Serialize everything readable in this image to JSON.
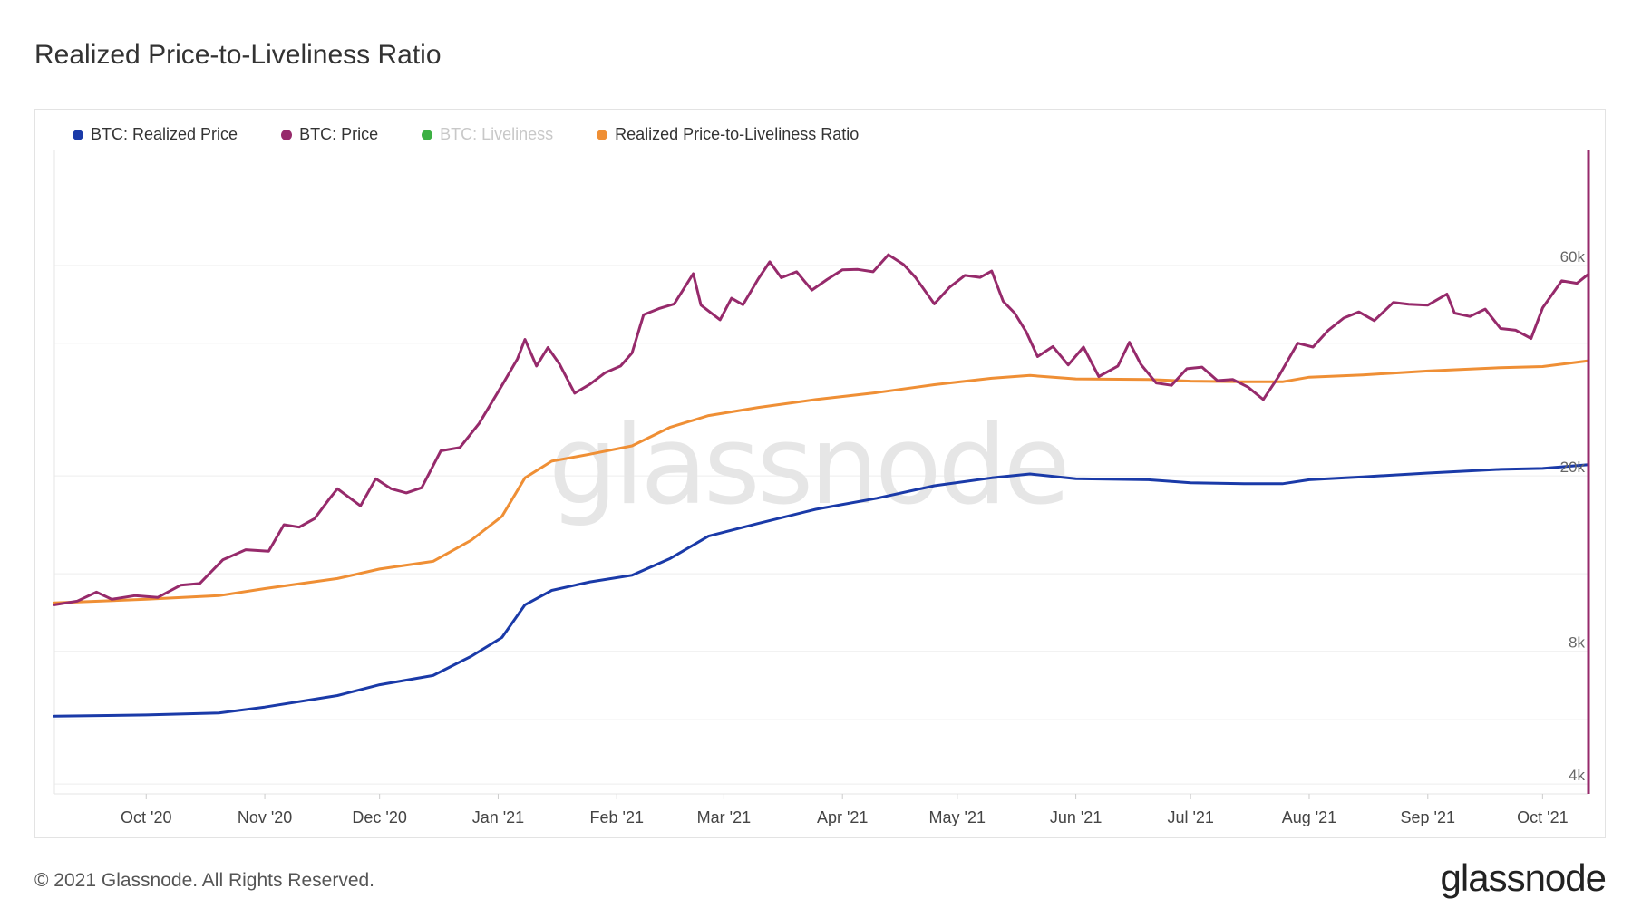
{
  "header": {
    "title": "Realized Price-to-Liveliness Ratio"
  },
  "footer": {
    "copyright": "© 2021 Glassnode. All Rights Reserved.",
    "logo_text": "glassnode"
  },
  "watermark": "glassnode",
  "colors": {
    "realized_price": "#1a3aa8",
    "price": "#962a6b",
    "liveliness": "#3cb043",
    "ratio": "#ef8f35",
    "grid": "#eeeeee"
  },
  "chart_data": {
    "type": "line",
    "title": "Realized Price-to-Liveliness Ratio",
    "xlabel": "",
    "ylabel": "",
    "yscale": "log",
    "ylim": [
      3800,
      110000
    ],
    "x_ticks": [
      "Oct '20",
      "Nov '20",
      "Dec '20",
      "Jan '21",
      "Feb '21",
      "Mar '21",
      "Apr '21",
      "May '21",
      "Jun '21",
      "Jul '21",
      "Aug '21",
      "Sep '21",
      "Oct '21"
    ],
    "x_tick_dates": [
      "2020-10-01",
      "2020-11-01",
      "2020-12-01",
      "2021-01-01",
      "2021-02-01",
      "2021-03-01",
      "2021-04-01",
      "2021-05-01",
      "2021-06-01",
      "2021-07-01",
      "2021-08-01",
      "2021-09-01",
      "2021-10-01"
    ],
    "x_range": [
      "2020-09-07",
      "2021-10-13"
    ],
    "y_ticks": [
      {
        "label": "60k",
        "value": 60000
      },
      {
        "label": "20k",
        "value": 20000
      },
      {
        "label": "8k",
        "value": 8000
      },
      {
        "label": "4k",
        "value": 4000
      }
    ],
    "grid": true,
    "legend_position": "top-left",
    "legend": [
      {
        "name": "BTC: Realized Price",
        "color": "#1a3aa8",
        "visible": true
      },
      {
        "name": "BTC: Price",
        "color": "#962a6b",
        "visible": true
      },
      {
        "name": "BTC: Liveliness",
        "color": "#3cb043",
        "visible": false
      },
      {
        "name": "Realized Price-to-Liveliness Ratio",
        "color": "#ef8f35",
        "visible": true
      }
    ],
    "series": [
      {
        "name": "BTC: Price",
        "color": "#962a6b",
        "points": [
          [
            "2020-09-07",
            10200
          ],
          [
            "2020-09-13",
            10400
          ],
          [
            "2020-09-18",
            10900
          ],
          [
            "2020-09-22",
            10500
          ],
          [
            "2020-09-28",
            10700
          ],
          [
            "2020-10-04",
            10600
          ],
          [
            "2020-10-10",
            11300
          ],
          [
            "2020-10-15",
            11400
          ],
          [
            "2020-10-21",
            12900
          ],
          [
            "2020-10-27",
            13600
          ],
          [
            "2020-11-02",
            13500
          ],
          [
            "2020-11-06",
            15500
          ],
          [
            "2020-11-10",
            15300
          ],
          [
            "2020-11-14",
            16000
          ],
          [
            "2020-11-18",
            17800
          ],
          [
            "2020-11-20",
            18700
          ],
          [
            "2020-11-26",
            17100
          ],
          [
            "2020-11-30",
            19700
          ],
          [
            "2020-12-04",
            18700
          ],
          [
            "2020-12-08",
            18300
          ],
          [
            "2020-12-12",
            18800
          ],
          [
            "2020-12-17",
            22800
          ],
          [
            "2020-12-22",
            23200
          ],
          [
            "2020-12-27",
            26300
          ],
          [
            "2021-01-02",
            32100
          ],
          [
            "2021-01-06",
            36800
          ],
          [
            "2021-01-08",
            40800
          ],
          [
            "2021-01-11",
            35500
          ],
          [
            "2021-01-14",
            39100
          ],
          [
            "2021-01-17",
            35900
          ],
          [
            "2021-01-21",
            30800
          ],
          [
            "2021-01-25",
            32300
          ],
          [
            "2021-01-29",
            34300
          ],
          [
            "2021-02-02",
            35500
          ],
          [
            "2021-02-05",
            38000
          ],
          [
            "2021-02-08",
            46400
          ],
          [
            "2021-02-12",
            47900
          ],
          [
            "2021-02-16",
            49100
          ],
          [
            "2021-02-21",
            57500
          ],
          [
            "2021-02-23",
            48800
          ],
          [
            "2021-02-28",
            45200
          ],
          [
            "2021-03-03",
            50600
          ],
          [
            "2021-03-06",
            48900
          ],
          [
            "2021-03-10",
            56000
          ],
          [
            "2021-03-13",
            61200
          ],
          [
            "2021-03-16",
            56300
          ],
          [
            "2021-03-20",
            58100
          ],
          [
            "2021-03-24",
            52800
          ],
          [
            "2021-03-28",
            55800
          ],
          [
            "2021-04-01",
            58700
          ],
          [
            "2021-04-05",
            58800
          ],
          [
            "2021-04-09",
            58100
          ],
          [
            "2021-04-13",
            63500
          ],
          [
            "2021-04-17",
            60300
          ],
          [
            "2021-04-20",
            56500
          ],
          [
            "2021-04-25",
            49100
          ],
          [
            "2021-04-29",
            53600
          ],
          [
            "2021-05-03",
            57000
          ],
          [
            "2021-05-07",
            56400
          ],
          [
            "2021-05-10",
            58300
          ],
          [
            "2021-05-13",
            49800
          ],
          [
            "2021-05-16",
            46800
          ],
          [
            "2021-05-19",
            42500
          ],
          [
            "2021-05-22",
            37300
          ],
          [
            "2021-05-26",
            39300
          ],
          [
            "2021-05-30",
            35700
          ],
          [
            "2021-06-03",
            39200
          ],
          [
            "2021-06-07",
            33600
          ],
          [
            "2021-06-12",
            35500
          ],
          [
            "2021-06-15",
            40200
          ],
          [
            "2021-06-18",
            35800
          ],
          [
            "2021-06-22",
            32500
          ],
          [
            "2021-06-26",
            32100
          ],
          [
            "2021-06-30",
            35000
          ],
          [
            "2021-07-04",
            35300
          ],
          [
            "2021-07-08",
            32900
          ],
          [
            "2021-07-12",
            33100
          ],
          [
            "2021-07-16",
            31800
          ],
          [
            "2021-07-20",
            29800
          ],
          [
            "2021-07-24",
            33600
          ],
          [
            "2021-07-29",
            40000
          ],
          [
            "2021-08-02",
            39200
          ],
          [
            "2021-08-06",
            42800
          ],
          [
            "2021-08-10",
            45600
          ],
          [
            "2021-08-14",
            47100
          ],
          [
            "2021-08-18",
            45000
          ],
          [
            "2021-08-23",
            49500
          ],
          [
            "2021-08-27",
            49000
          ],
          [
            "2021-09-01",
            48800
          ],
          [
            "2021-09-06",
            51700
          ],
          [
            "2021-09-08",
            46800
          ],
          [
            "2021-09-12",
            46000
          ],
          [
            "2021-09-16",
            47800
          ],
          [
            "2021-09-20",
            43200
          ],
          [
            "2021-09-24",
            42800
          ],
          [
            "2021-09-28",
            41000
          ],
          [
            "2021-10-01",
            48100
          ],
          [
            "2021-10-06",
            55400
          ],
          [
            "2021-10-10",
            54700
          ],
          [
            "2021-10-13",
            57400
          ]
        ]
      },
      {
        "name": "Realized Price-to-Liveliness Ratio",
        "color": "#ef8f35",
        "points": [
          [
            "2020-09-07",
            10300
          ],
          [
            "2020-10-01",
            10500
          ],
          [
            "2020-10-20",
            10700
          ],
          [
            "2020-11-01",
            11100
          ],
          [
            "2020-11-20",
            11700
          ],
          [
            "2020-12-01",
            12300
          ],
          [
            "2020-12-15",
            12800
          ],
          [
            "2020-12-25",
            14300
          ],
          [
            "2021-01-02",
            16200
          ],
          [
            "2021-01-08",
            19800
          ],
          [
            "2021-01-15",
            21600
          ],
          [
            "2021-01-25",
            22400
          ],
          [
            "2021-02-05",
            23400
          ],
          [
            "2021-02-15",
            25800
          ],
          [
            "2021-02-25",
            27400
          ],
          [
            "2021-03-10",
            28600
          ],
          [
            "2021-03-25",
            29800
          ],
          [
            "2021-04-10",
            30900
          ],
          [
            "2021-04-25",
            32200
          ],
          [
            "2021-05-10",
            33300
          ],
          [
            "2021-05-20",
            33800
          ],
          [
            "2021-06-01",
            33200
          ],
          [
            "2021-06-20",
            33100
          ],
          [
            "2021-07-01",
            32800
          ],
          [
            "2021-07-15",
            32700
          ],
          [
            "2021-07-25",
            32700
          ],
          [
            "2021-08-01",
            33500
          ],
          [
            "2021-08-15",
            33900
          ],
          [
            "2021-09-01",
            34600
          ],
          [
            "2021-09-20",
            35200
          ],
          [
            "2021-10-01",
            35400
          ],
          [
            "2021-10-13",
            36500
          ]
        ]
      },
      {
        "name": "BTC: Realized Price",
        "color": "#1a3aa8",
        "points": [
          [
            "2020-09-07",
            5700
          ],
          [
            "2020-10-01",
            5740
          ],
          [
            "2020-10-20",
            5800
          ],
          [
            "2020-11-01",
            5980
          ],
          [
            "2020-11-20",
            6350
          ],
          [
            "2020-12-01",
            6720
          ],
          [
            "2020-12-15",
            7050
          ],
          [
            "2020-12-25",
            7800
          ],
          [
            "2021-01-02",
            8600
          ],
          [
            "2021-01-08",
            10200
          ],
          [
            "2021-01-15",
            11000
          ],
          [
            "2021-01-25",
            11500
          ],
          [
            "2021-02-05",
            11900
          ],
          [
            "2021-02-15",
            13000
          ],
          [
            "2021-02-25",
            14600
          ],
          [
            "2021-03-10",
            15600
          ],
          [
            "2021-03-25",
            16800
          ],
          [
            "2021-04-10",
            17800
          ],
          [
            "2021-04-25",
            19000
          ],
          [
            "2021-05-10",
            19800
          ],
          [
            "2021-05-20",
            20200
          ],
          [
            "2021-06-01",
            19700
          ],
          [
            "2021-06-20",
            19600
          ],
          [
            "2021-07-01",
            19300
          ],
          [
            "2021-07-15",
            19200
          ],
          [
            "2021-07-25",
            19200
          ],
          [
            "2021-08-01",
            19600
          ],
          [
            "2021-08-15",
            19900
          ],
          [
            "2021-09-01",
            20300
          ],
          [
            "2021-09-20",
            20700
          ],
          [
            "2021-10-01",
            20800
          ],
          [
            "2021-10-13",
            21200
          ]
        ]
      }
    ]
  }
}
